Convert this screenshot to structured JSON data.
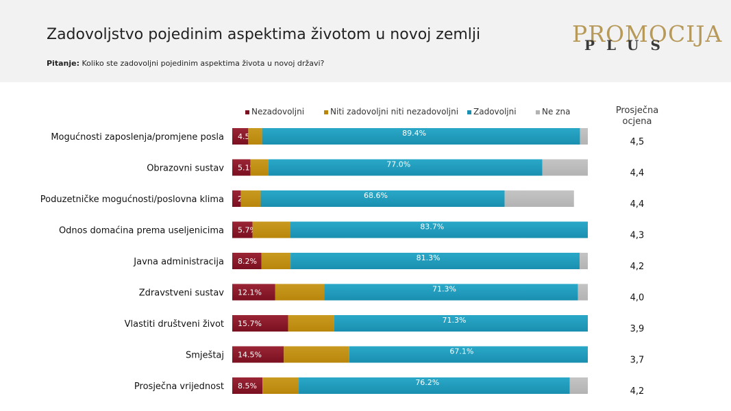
{
  "header": {
    "title": "Zadovoljstvo pojedinim aspektima životom u novoj zemlji",
    "question_label": "Pitanje:",
    "question_text": "Koliko ste zadovoljni pojedinim aspektima života u novoj državi?"
  },
  "logo": {
    "main": "PROMOCIJA",
    "sub": "PLUS"
  },
  "colors": {
    "nezadovoljni": "#7a1020",
    "niti": "#b8860b",
    "zadovoljni": "#1a8fb0",
    "ne_zna": "#b3b3b3"
  },
  "avg_header": "Prosječna ocjena",
  "chart_data": {
    "type": "bar",
    "orientation": "horizontal",
    "stacked": true,
    "categories": [
      "Mogućnosti zaposlenja/promjene posla",
      "Obrazovni sustav",
      "Poduzetničke mogućnosti/poslovna klima",
      "Odnos domaćina prema useljenicima",
      "Javna administracija",
      "Zdravstveni sustav",
      "Vlastiti društveni život",
      "Smještaj",
      "Prosječna vrijednost"
    ],
    "series": [
      {
        "name": "Nezadovoljni",
        "values": [
          4.5,
          5.1,
          2.4,
          5.7,
          8.2,
          12.1,
          15.7,
          14.5,
          8.5
        ],
        "labels": [
          "4.5%",
          "5.1%",
          "2.4%",
          "5.7%",
          "8.2%",
          "12.1%",
          "15.7%",
          "14.5%",
          "8.5%"
        ]
      },
      {
        "name": "Niti zadovoljni niti nezadovoljni",
        "values": [
          3.9,
          5.1,
          5.6,
          10.6,
          8.2,
          13.8,
          13.0,
          18.4,
          10.2
        ]
      },
      {
        "name": "Zadovoljni",
        "values": [
          89.4,
          77.0,
          68.6,
          83.7,
          81.3,
          71.3,
          71.3,
          67.1,
          76.2
        ],
        "labels": [
          "89.4%",
          "77.0%",
          "68.6%",
          "83.7%",
          "81.3%",
          "71.3%",
          "71.3%",
          "67.1%",
          "76.2%"
        ]
      },
      {
        "name": "Ne zna",
        "values": [
          2.2,
          12.8,
          19.5,
          0.0,
          2.3,
          2.8,
          0.0,
          0.0,
          5.1
        ]
      }
    ],
    "averages": [
      "4,5",
      "4,4",
      "4,4",
      "4,3",
      "4,2",
      "4,0",
      "3,9",
      "3,7",
      "4,2"
    ],
    "xlim": [
      0,
      100
    ],
    "legend_position": "top"
  }
}
